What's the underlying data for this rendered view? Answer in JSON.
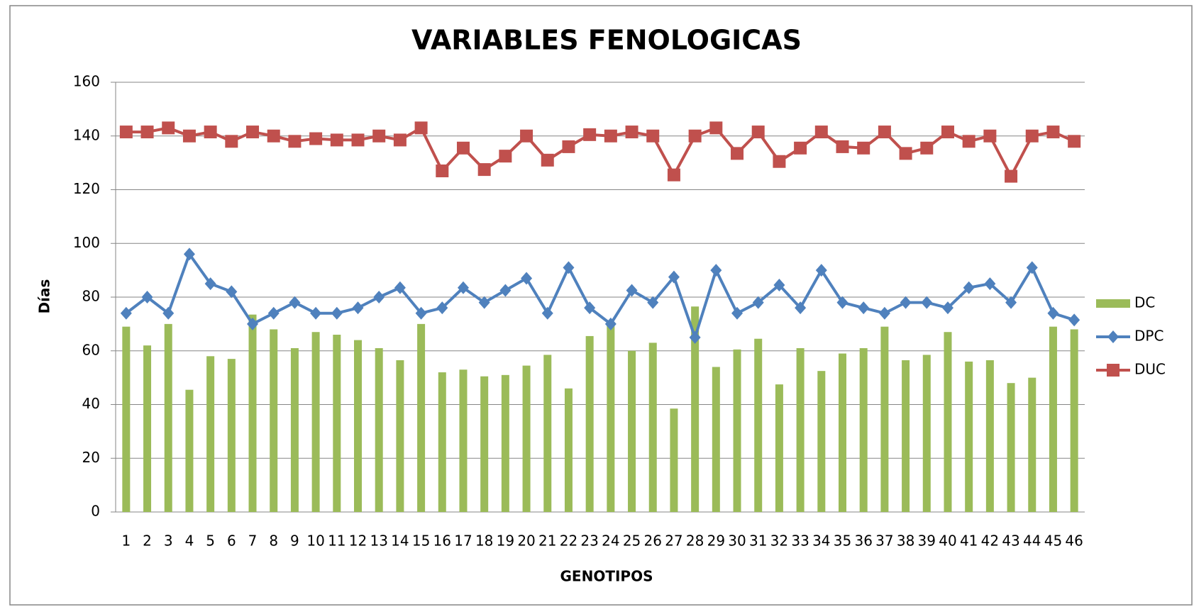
{
  "chart_data": {
    "type": "bar",
    "title": "VARIABLES FENOLOGICAS",
    "x_label": "GENOTIPOS",
    "y_label": "Días",
    "categories": [
      "1",
      "2",
      "3",
      "4",
      "5",
      "6",
      "7",
      "8",
      "9",
      "10",
      "11",
      "12",
      "13",
      "14",
      "15",
      "16",
      "17",
      "18",
      "19",
      "20",
      "21",
      "22",
      "23",
      "24",
      "25",
      "26",
      "27",
      "28",
      "29",
      "30",
      "31",
      "32",
      "33",
      "34",
      "35",
      "36",
      "37",
      "38",
      "39",
      "40",
      "41",
      "42",
      "43",
      "44",
      "45",
      "46"
    ],
    "series": [
      {
        "name": "DC",
        "type": "bar",
        "color": "#9bbb59",
        "values": [
          69,
          62,
          70,
          45.5,
          58,
          57,
          73.5,
          68,
          61,
          67,
          66,
          64,
          61,
          56.5,
          70,
          52,
          53,
          50.5,
          51,
          54.5,
          58.5,
          46,
          65.5,
          70,
          60,
          63,
          38.5,
          76.5,
          54,
          60.5,
          64.5,
          47.5,
          61,
          52.5,
          59,
          61,
          69,
          56.5,
          58.5,
          67,
          56,
          56.5,
          48,
          50,
          69,
          68
        ]
      },
      {
        "name": "DPC",
        "type": "line",
        "marker": "diamond",
        "color": "#4f81bd",
        "values": [
          74,
          80,
          74,
          96,
          85,
          82,
          70,
          74,
          78,
          74,
          74,
          76,
          80,
          83.5,
          74,
          76,
          83.5,
          78,
          82.5,
          87,
          74,
          91,
          76,
          70,
          82.5,
          78,
          87.5,
          65,
          90,
          74,
          78,
          84.5,
          76,
          90,
          78,
          76,
          74,
          78,
          78,
          76,
          83.5,
          85,
          78,
          91,
          74,
          71.5
        ]
      },
      {
        "name": "DUC",
        "type": "line",
        "marker": "square",
        "color": "#c0504d",
        "values": [
          141.5,
          141.5,
          143,
          140,
          141.5,
          138,
          141.5,
          140,
          138,
          139,
          138.5,
          138.5,
          140,
          138.5,
          143,
          127,
          135.5,
          127.5,
          132.5,
          140,
          131,
          136,
          140.5,
          140,
          141.5,
          140,
          125.5,
          140,
          143,
          133.5,
          141.5,
          130.5,
          135.5,
          141.5,
          136,
          135.5,
          141.5,
          133.5,
          135.5,
          141.5,
          138,
          140,
          125,
          140,
          141.5,
          138
        ]
      }
    ],
    "ylim": [
      0,
      160
    ],
    "yticks": [
      0,
      20,
      40,
      60,
      80,
      100,
      120,
      140,
      160
    ],
    "grid": true,
    "legend": "right"
  }
}
